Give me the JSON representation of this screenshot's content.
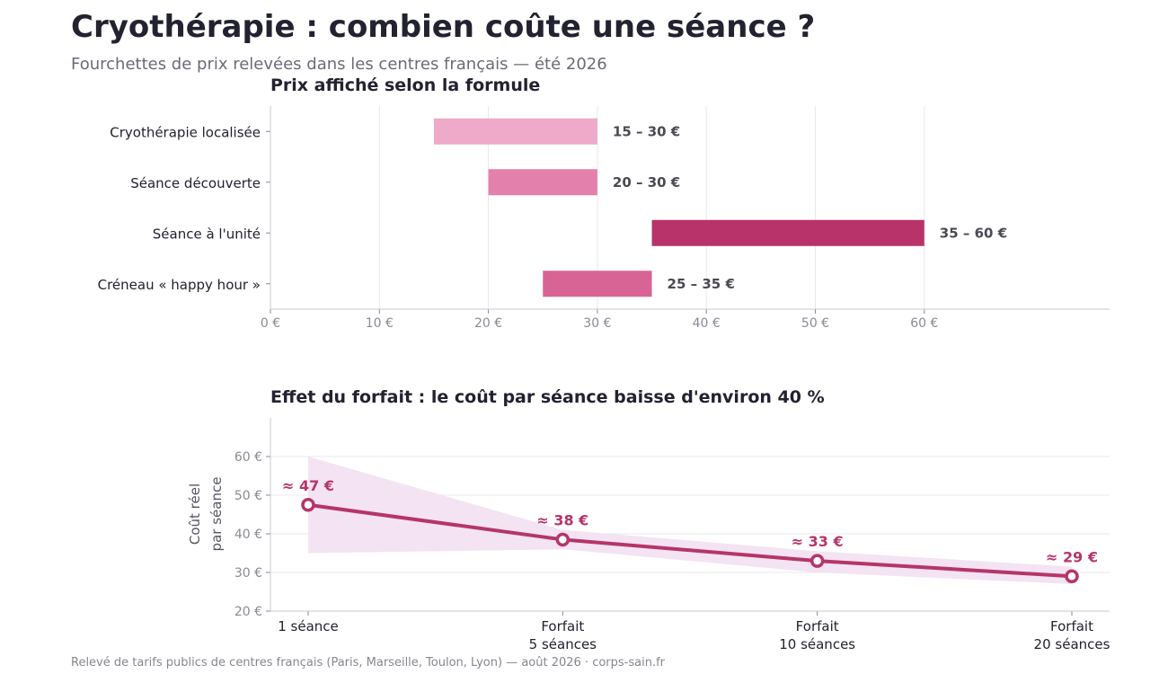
{
  "header": {
    "title": "Cryothérapie : combien coûte une séance ?",
    "subtitle": "Fourchettes de prix relevées dans les centres français — été 2026"
  },
  "footer": {
    "source": "Relevé de tarifs publics de centres français (Paris, Marseille, Toulon, Lyon) — août 2026 · corps-sain.fr"
  },
  "chart_data": [
    {
      "type": "bar",
      "orientation": "horizontal-range",
      "title": "Prix affiché selon la formule",
      "xlim": [
        0,
        77
      ],
      "x_ticks": [
        0,
        10,
        20,
        30,
        40,
        50,
        60
      ],
      "x_tick_labels": [
        "0 €",
        "10 €",
        "20 €",
        "30 €",
        "40 €",
        "50 €",
        "60 €"
      ],
      "grid": true,
      "categories": [
        "Cryothérapie localisée",
        "Séance découverte",
        "Séance à l'unité",
        "Créneau « happy hour »"
      ],
      "ranges": [
        {
          "min": 15,
          "max": 30,
          "label": "15 – 30 €",
          "color": "#eeaac8"
        },
        {
          "min": 20,
          "max": 30,
          "label": "20 – 30 €",
          "color": "#e380ac"
        },
        {
          "min": 35,
          "max": 60,
          "label": "35 – 60 €",
          "color": "#b73369"
        },
        {
          "min": 25,
          "max": 35,
          "label": "25 – 35 €",
          "color": "#d86496"
        }
      ]
    },
    {
      "type": "line",
      "title": "Effet du forfait : le coût par séance baisse d'environ 40 %",
      "ylabel_lines": [
        "Coût réel",
        "par séance"
      ],
      "ylim": [
        20,
        70
      ],
      "y_ticks": [
        20,
        30,
        40,
        50,
        60
      ],
      "y_tick_labels": [
        "20 €",
        "30 €",
        "40 €",
        "50 €",
        "60 €"
      ],
      "grid": true,
      "categories": [
        [
          "1 séance"
        ],
        [
          "Forfait",
          "5 séances"
        ],
        [
          "Forfait",
          "10 séances"
        ],
        [
          "Forfait",
          "20 séances"
        ]
      ],
      "values": [
        47.5,
        38.5,
        33,
        29
      ],
      "band_low": [
        35,
        36,
        30,
        27
      ],
      "band_high": [
        60,
        41,
        35.5,
        31.5
      ],
      "point_labels": [
        "≈ 47 €",
        "≈ 38 €",
        "≈ 33 €",
        "≈ 29 €"
      ],
      "line_color": "#b5356b",
      "band_color": "#f3e3f3"
    }
  ]
}
